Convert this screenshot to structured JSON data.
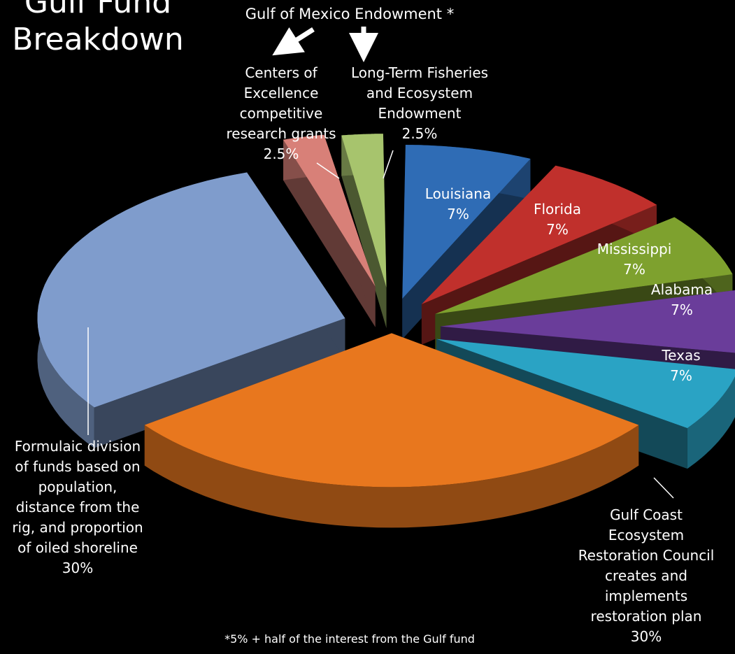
{
  "title_lines": [
    "Gulf Fund",
    "Breakdown"
  ],
  "endowment_heading": "Gulf of Mexico Endowment *",
  "footnote": "*5% + half of the interest from the Gulf fund",
  "chart_data": {
    "type": "pie",
    "title": "Gulf Fund Breakdown",
    "slices": [
      {
        "label_lines": [
          "Louisiana"
        ],
        "value": 7,
        "value_label": "7%",
        "color": "#2f6cb5"
      },
      {
        "label_lines": [
          "Florida"
        ],
        "value": 7,
        "value_label": "7%",
        "color": "#c0302c"
      },
      {
        "label_lines": [
          "Mississippi"
        ],
        "value": 7,
        "value_label": "7%",
        "color": "#7ea12e"
      },
      {
        "label_lines": [
          "Alabama"
        ],
        "value": 7,
        "value_label": "7%",
        "color": "#6a3d9a"
      },
      {
        "label_lines": [
          "Texas"
        ],
        "value": 7,
        "value_label": "7%",
        "color": "#2aa3c4"
      },
      {
        "label_lines": [
          "Gulf Coast",
          "Ecosystem",
          "Restoration Council",
          "creates and",
          "implements",
          "restoration plan"
        ],
        "value": 30,
        "value_label": "30%",
        "color": "#e8771e"
      },
      {
        "label_lines": [
          "Formulaic division",
          "of funds based on",
          "population,",
          "distance from the",
          "rig, and proportion",
          "of oiled shoreline"
        ],
        "value": 30,
        "value_label": "30%",
        "color": "#7f9ccc"
      },
      {
        "label_lines": [
          "Centers of",
          "Excellence",
          "competitive",
          "research grants"
        ],
        "value": 2.5,
        "value_label": "2.5%",
        "color": "#d88078"
      },
      {
        "label_lines": [
          "Long-Term Fisheries",
          "and Ecosystem",
          "Endowment"
        ],
        "value": 2.5,
        "value_label": "2.5%",
        "color": "#a7c46d"
      }
    ]
  }
}
